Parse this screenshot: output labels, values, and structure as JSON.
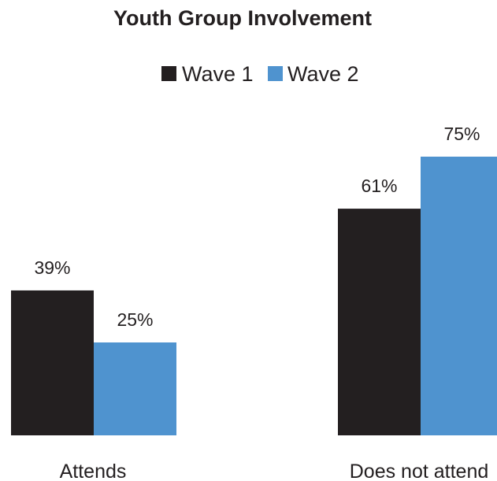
{
  "chart_data": {
    "type": "bar",
    "title": "Youth Group Involvement",
    "categories": [
      "Attends",
      "Does not attend"
    ],
    "series": [
      {
        "name": "Wave 1",
        "values": [
          39,
          61
        ],
        "labels": [
          "39%",
          "61%"
        ],
        "color": "#231f20"
      },
      {
        "name": "Wave 2",
        "values": [
          25,
          75
        ],
        "labels": [
          "25%",
          "75%"
        ],
        "color": "#4f93cf"
      }
    ],
    "ylim": [
      0,
      100
    ],
    "grid": false,
    "legend_position": "top-center",
    "xlabel": "",
    "ylabel": ""
  }
}
